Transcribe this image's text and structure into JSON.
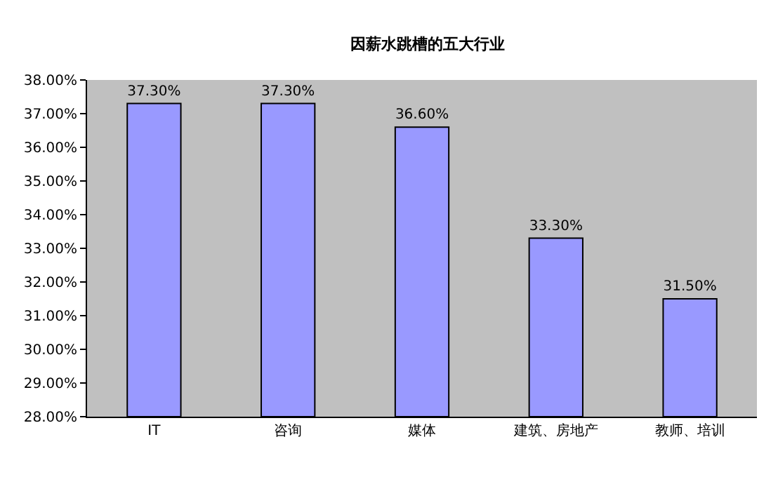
{
  "chart_data": {
    "type": "bar",
    "title": "因薪水跳槽的五大行业",
    "categories": [
      "IT",
      "咨询",
      "媒体",
      "建筑、房地产",
      "教师、培训"
    ],
    "values": [
      37.3,
      37.3,
      36.6,
      33.3,
      31.5
    ],
    "value_labels": [
      "37.30%",
      "37.30%",
      "36.60%",
      "33.30%",
      "31.50%"
    ],
    "color": "#9999ff",
    "ylim": [
      28,
      38
    ],
    "yticks": [
      {
        "value": 28,
        "label": "28.00%"
      },
      {
        "value": 29,
        "label": "29.00%"
      },
      {
        "value": 30,
        "label": "30.00%"
      },
      {
        "value": 31,
        "label": "31.00%"
      },
      {
        "value": 32,
        "label": "32.00%"
      },
      {
        "value": 33,
        "label": "33.00%"
      },
      {
        "value": 34,
        "label": "34.00%"
      },
      {
        "value": 35,
        "label": "35.00%"
      },
      {
        "value": 36,
        "label": "36.00%"
      },
      {
        "value": 37,
        "label": "37.00%"
      },
      {
        "value": 38,
        "label": "38.00%"
      }
    ],
    "grid": false,
    "legend": false
  }
}
